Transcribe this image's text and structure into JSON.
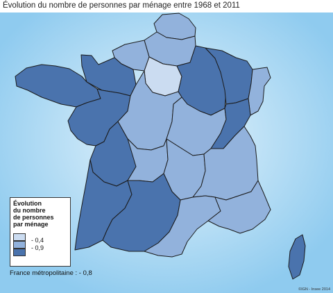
{
  "title": "Évolution du nombre de personnes par ménage entre 1968 et 2011",
  "legend": {
    "title_lines": [
      "Évolution",
      "du nombre",
      "de personnes",
      "par ménage"
    ],
    "classes": [
      {
        "key": "light",
        "color": "#cbdcf1"
      },
      {
        "key": "mid",
        "color": "#92b2dc"
      },
      {
        "key": "dark",
        "color": "#4a73ad"
      }
    ],
    "breaks": [
      "- 0,4",
      "- 0,9"
    ]
  },
  "note": "France métropolitaine : - 0,8",
  "credit": "©IGN - Insee 2014",
  "colors": {
    "sea": "#8fcbef",
    "sea_light": "#e8f5fc",
    "border": "#1a1a1a"
  },
  "regions": [
    {
      "name": "Nord-Pas-de-Calais",
      "class": "mid"
    },
    {
      "name": "Picardie",
      "class": "mid"
    },
    {
      "name": "Haute-Normandie",
      "class": "mid"
    },
    {
      "name": "Basse-Normandie",
      "class": "dark"
    },
    {
      "name": "Bretagne",
      "class": "dark"
    },
    {
      "name": "Île-de-France",
      "class": "light"
    },
    {
      "name": "Champagne-Ardenne",
      "class": "dark"
    },
    {
      "name": "Lorraine",
      "class": "dark"
    },
    {
      "name": "Alsace",
      "class": "mid"
    },
    {
      "name": "Pays de la Loire",
      "class": "dark"
    },
    {
      "name": "Centre",
      "class": "mid"
    },
    {
      "name": "Bourgogne",
      "class": "mid"
    },
    {
      "name": "Franche-Comté",
      "class": "dark"
    },
    {
      "name": "Poitou-Charentes",
      "class": "dark"
    },
    {
      "name": "Limousin",
      "class": "mid"
    },
    {
      "name": "Auvergne",
      "class": "mid"
    },
    {
      "name": "Rhône-Alpes",
      "class": "mid"
    },
    {
      "name": "Aquitaine",
      "class": "dark"
    },
    {
      "name": "Midi-Pyrénées",
      "class": "dark"
    },
    {
      "name": "Languedoc-Roussillon",
      "class": "mid"
    },
    {
      "name": "Provence-Alpes-Côte d'Azur",
      "class": "mid"
    },
    {
      "name": "Corse",
      "class": "dark"
    }
  ]
}
